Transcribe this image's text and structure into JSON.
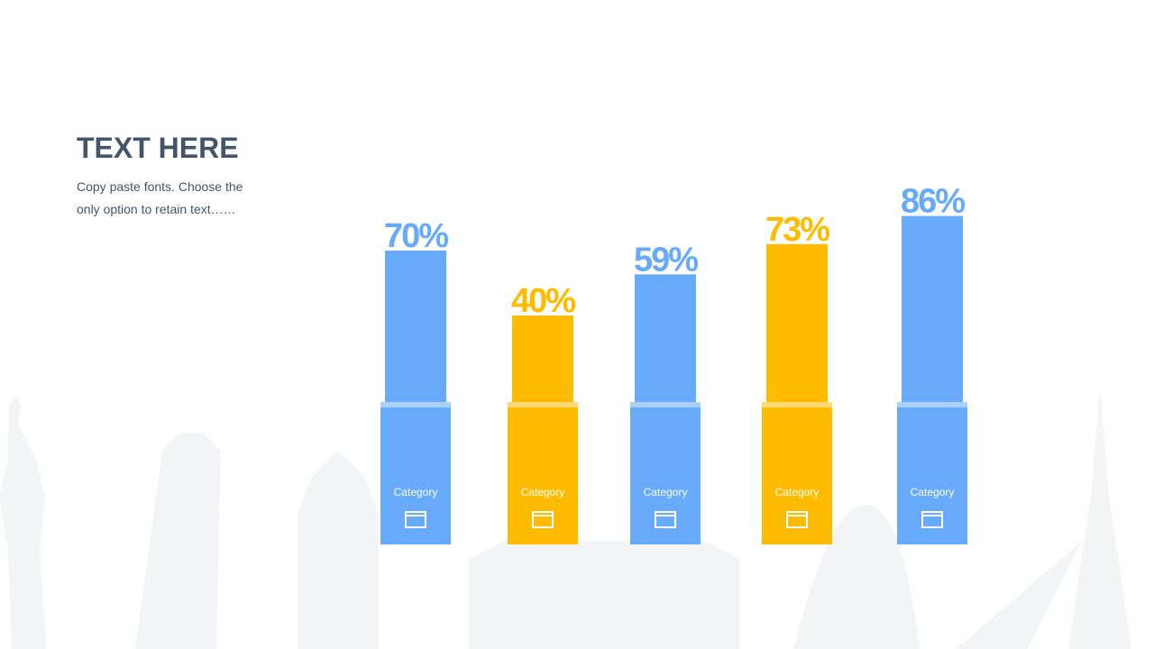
{
  "chart_data": {
    "type": "bar",
    "title": "TEXT HERE",
    "subtitle": "Copy paste fonts. Choose the only option to retain text……",
    "categories": [
      "Category",
      "Category",
      "Category",
      "Category",
      "Category"
    ],
    "values": [
      70,
      40,
      59,
      73,
      86
    ],
    "value_labels": [
      "70%",
      "40%",
      "59%",
      "73%",
      "86%"
    ],
    "colors": [
      "#66aaf9",
      "#ffbb00",
      "#66aaf9",
      "#ffbb00",
      "#66aaf9"
    ]
  }
}
